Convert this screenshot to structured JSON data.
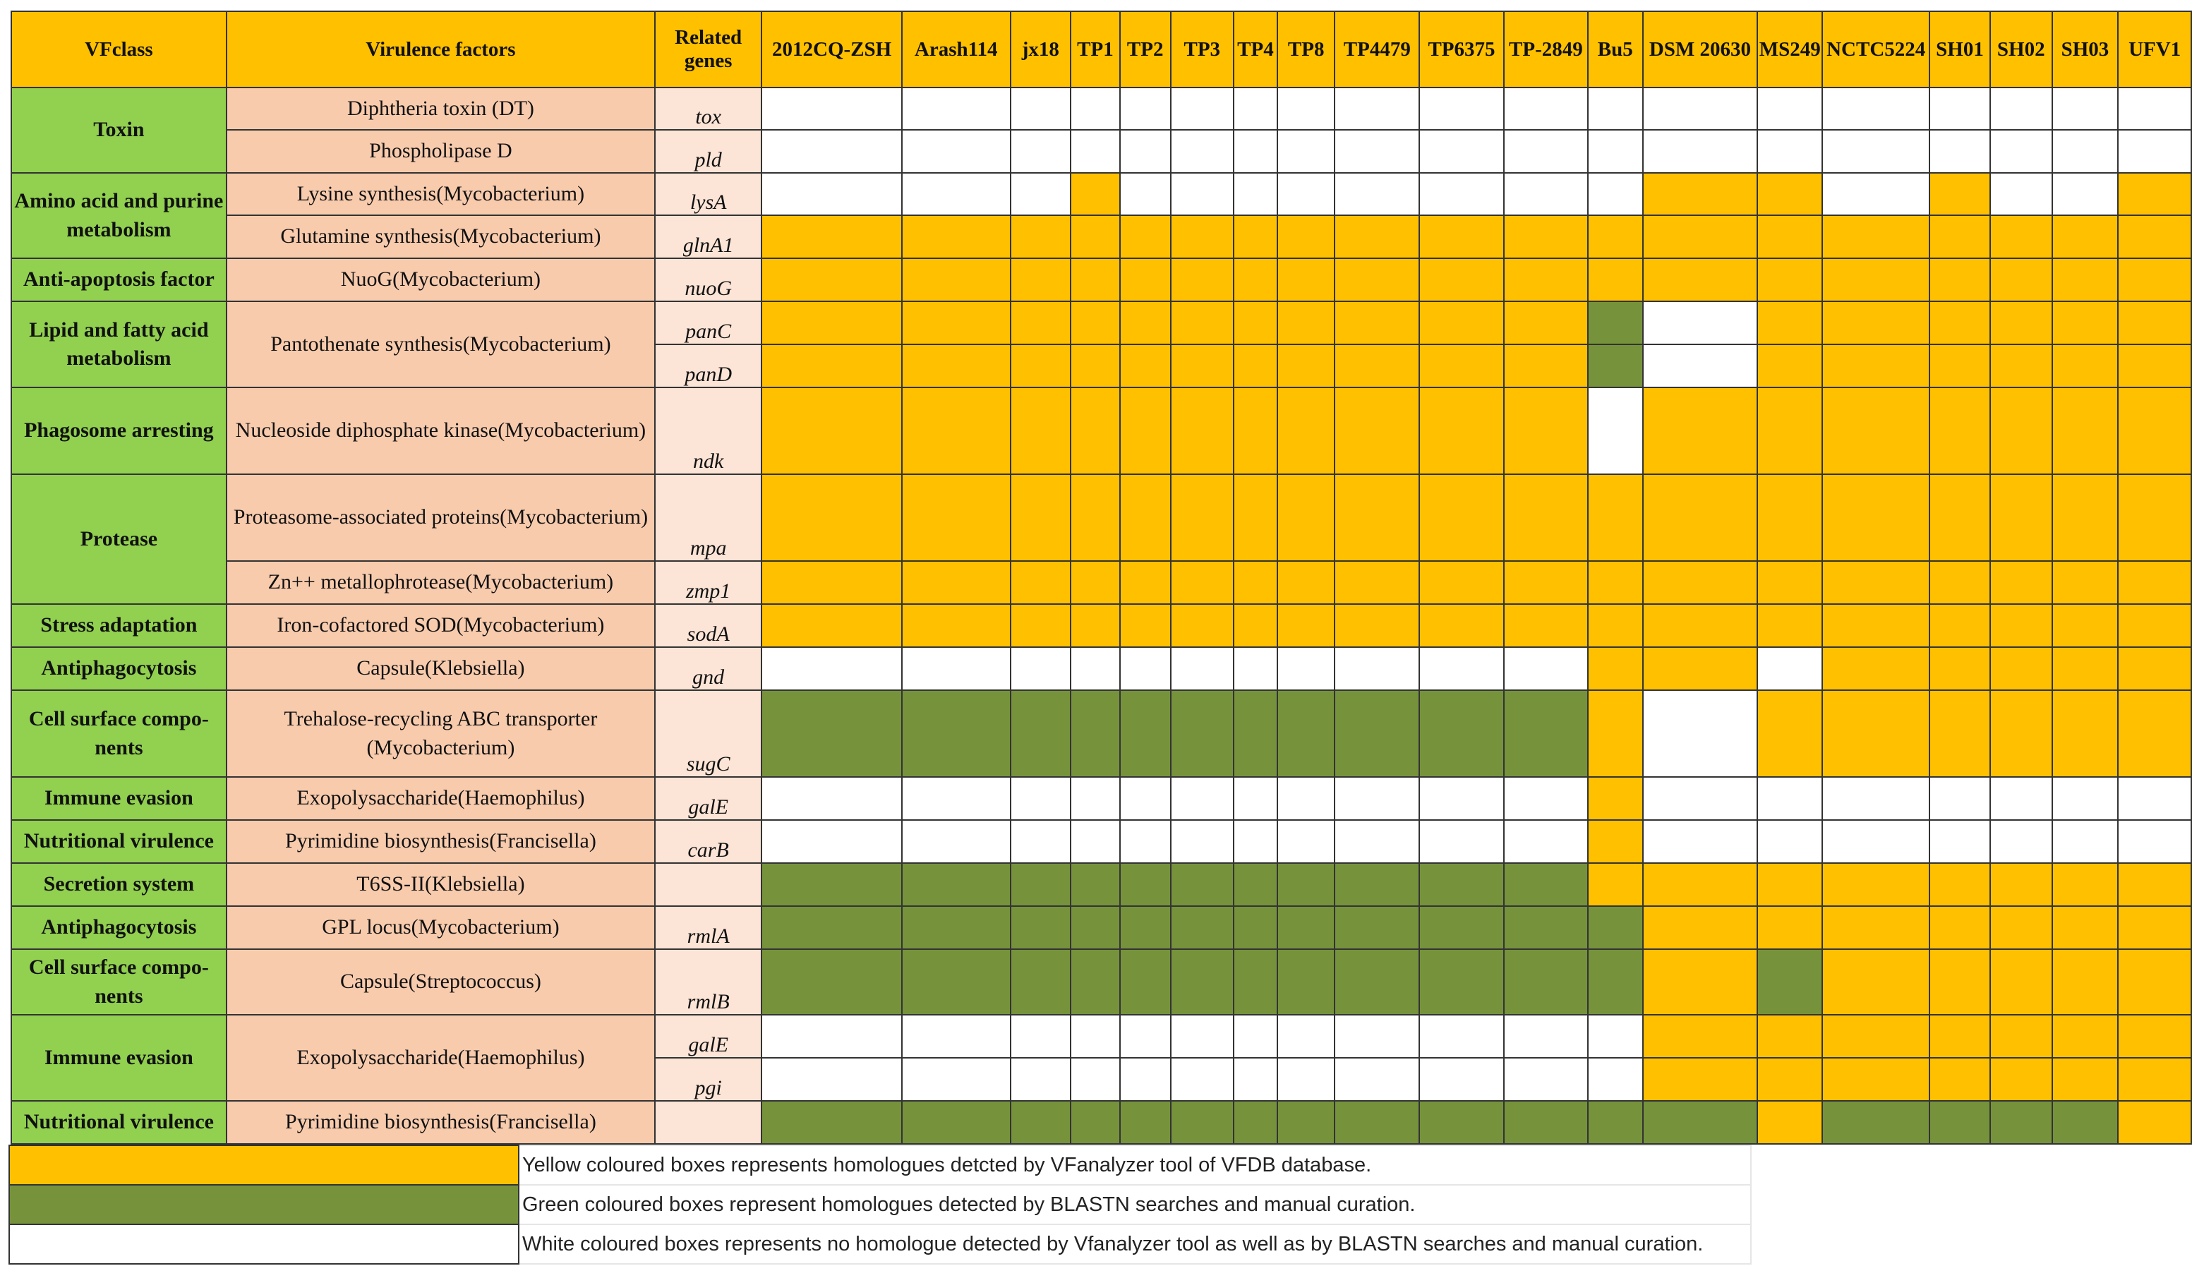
{
  "headers": {
    "vf_class": "VFclass",
    "virulence_factor": "Virulence factors",
    "related_genes": "Related genes",
    "strains": [
      "2012CQ-ZSH",
      "Arash114",
      "jx18",
      "TP1",
      "TP2",
      "TP3",
      "TP4",
      "TP8",
      "TP4479",
      "TP6375",
      "TP-2849",
      "Bu5",
      "DSM 20630",
      "MS249",
      "NCTC5224",
      "SH01",
      "SH02",
      "SH03",
      "UFV1"
    ]
  },
  "rows": [
    {
      "vfclass": "Toxin",
      "factor": "Diphtheria toxin (DT)",
      "gene": "tox",
      "cells": "WWWWWWWWWWWWWWWWWWW"
    },
    {
      "vfclass": "",
      "factor": "Phospholipase D",
      "gene": "pld",
      "cells": "WWWWWWWWWWWWWWWWWWW"
    },
    {
      "vfclass": "Amino acid and purine metabolism",
      "factor": "Lysine synthesis(Mycobacterium)",
      "gene": "lysA",
      "cells": "WWWYWWWWWWWWYYWYWWY"
    },
    {
      "vfclass": "",
      "factor": "Glutamine synthesis(Mycobacterium)",
      "gene": "glnA1",
      "cells": "YYYYYYYYYYYYYYYYYYY"
    },
    {
      "vfclass": "Anti-apoptosis factor",
      "factor": "NuoG(Mycobacterium)",
      "gene": "nuoG",
      "cells": "YYYYYYYYYYYYYYYYYYY"
    },
    {
      "vfclass": "Lipid and fatty acid metabolism",
      "factor": "Pantothenate synthesis(Mycobacterium)",
      "gene": "panC",
      "cells": "YYYYYYYYYYYGWYYYYYY"
    },
    {
      "vfclass": "",
      "factor": "",
      "gene": "panD",
      "cells": "YYYYYYYYYYYGWYYYYYY"
    },
    {
      "vfclass": "Phagosome arresting",
      "factor": "Nucleoside diphosphate kinase(Mycobacterium)",
      "gene": "ndk",
      "cells": "YYYYYYYYYYYWYYYYYYY"
    },
    {
      "vfclass": "Protease",
      "factor": "Proteasome-associated proteins(Mycobacterium)",
      "gene": "mpa",
      "cells": "YYYYYYYYYYYYYYYYYYY"
    },
    {
      "vfclass": "",
      "factor": "Zn++ metallophrotease(Mycobacterium)",
      "gene": "zmp1",
      "cells": "YYYYYYYYYYYYYYYYYYY"
    },
    {
      "vfclass": "Stress adaptation",
      "factor": "Iron-cofactored  SOD(Mycobacterium)",
      "gene": "sodA",
      "cells": "YYYYYYYYYYYYYYYYYYY"
    },
    {
      "vfclass": "Antiphagocytosis",
      "factor": "Capsule(Klebsiella)",
      "gene": "gnd",
      "cells": "WWWWWWWWWWWYYWYYYYY"
    },
    {
      "vfclass": "Cell surface compo- nents",
      "factor": "Trehalose-recycling ABC transporter (Mycobacterium)",
      "gene": "sugC",
      "cells": "GGGGGGGGGGGYWYYYYYY"
    },
    {
      "vfclass": "Immune evasion",
      "factor": "Exopolysaccharide(Haemophilus)",
      "gene": "galE",
      "cells": "WWWWWWWWWWWYWWWWWWW"
    },
    {
      "vfclass": "Nutritional virulence",
      "factor": "Pyrimidine biosynthesis(Francisella)",
      "gene": "carB",
      "cells": "WWWWWWWWWWWYWWWWWWW"
    },
    {
      "vfclass": "Secretion system",
      "factor": "T6SS-II(Klebsiella)",
      "gene": "",
      "cells": "GGGGGGGGGGGYYYYYYYY"
    },
    {
      "vfclass": "Antiphagocytosis",
      "factor": "GPL locus(Mycobacterium)",
      "gene": "rmlA",
      "cells": "GGGGGGGGGGGGYYYYYYY"
    },
    {
      "vfclass": "Cell surface compo- nents",
      "factor": "Capsule(Streptococcus)",
      "gene": "rmlB",
      "cells": "GGGGGGGGGGGGYGYYYYY"
    },
    {
      "vfclass": "Immune evasion",
      "factor": "Exopolysaccharide(Haemophilus)",
      "gene": "galE",
      "cells": "WWWWWWWWWWWWYYYYYYY"
    },
    {
      "vfclass": "",
      "factor": "",
      "gene": "pgi",
      "cells": "WWWWWWWWWWWWYYYYYYY"
    },
    {
      "vfclass": "Nutritional virulence",
      "factor": "Pyrimidine biosynthesis(Francisella)",
      "gene": "",
      "cells": "GGGGGGGGGGGGGYGGGGY"
    }
  ],
  "legend": [
    {
      "color": "#FFC000",
      "text": "Yellow coloured boxes represents homologues detcted by VFanalyzer tool of VFDB database."
    },
    {
      "color": "#76933C",
      "text": "Green coloured boxes represent homologues detected by BLASTN searches and manual curation."
    },
    {
      "color": "#FFFFFF",
      "text": "White coloured boxes represents no homologue detected by Vfanalyzer tool as well as by BLASTN searches and manual curation."
    }
  ],
  "colors": {
    "yellow": "#FFC000",
    "green": "#76933C",
    "white": "#FFFFFF",
    "class_bg": "#92D050",
    "factor_bg": "#F8CBAD"
  }
}
